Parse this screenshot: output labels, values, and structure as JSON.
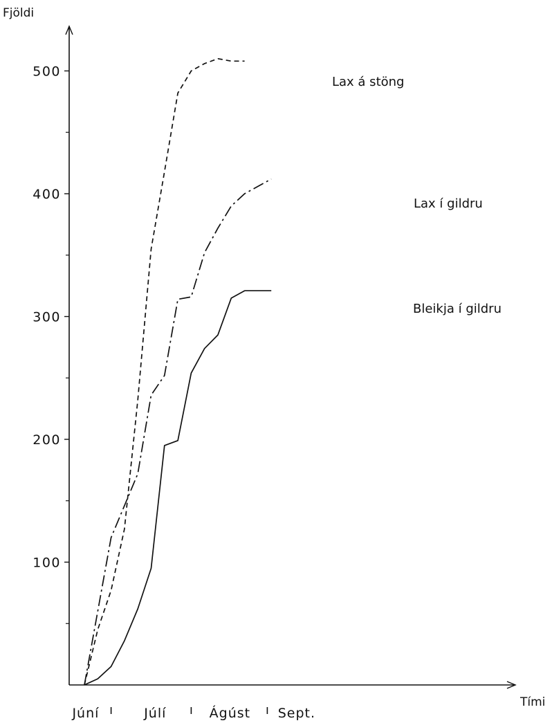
{
  "chart_data": {
    "type": "line",
    "ylabel": "Fjöldi",
    "xlabel": "Tími",
    "ylim": [
      0,
      520
    ],
    "yticks_major": [
      100,
      200,
      300,
      400,
      500
    ],
    "yticks_minor": [
      50,
      150,
      250,
      350,
      450
    ],
    "xlim": [
      0,
      17.4
    ],
    "month_labels": [
      {
        "label": "Júní",
        "x": 0.1
      },
      {
        "label": "Júlí",
        "x": 5.3
      },
      {
        "label": "Ágúst",
        "x": 10.9
      },
      {
        "label": "Sept.",
        "x": 15.9
      }
    ],
    "month_boundaries": [
      2.0,
      8.0,
      13.7
    ],
    "grid": false,
    "series": [
      {
        "name": "Lax á stöng",
        "style": "dashed",
        "color": "#111111",
        "x": [
          0,
          1,
          2,
          3,
          4,
          5,
          6,
          7,
          8,
          9,
          10,
          11,
          12
        ],
        "y": [
          0,
          45,
          77,
          127,
          232,
          355,
          418,
          482,
          500,
          506,
          510,
          508,
          508
        ]
      },
      {
        "name": "Lax í gildru",
        "style": "dashdot",
        "color": "#111111",
        "x": [
          0,
          2,
          4,
          5,
          6,
          7,
          8,
          9,
          10,
          11,
          12,
          13,
          14
        ],
        "y": [
          0,
          120,
          172,
          236,
          252,
          314,
          316,
          352,
          372,
          390,
          400,
          406,
          412
        ]
      },
      {
        "name": "Bleikja í gildru",
        "style": "solid",
        "color": "#111111",
        "x": [
          0,
          1,
          2,
          3,
          4,
          5,
          6,
          7,
          8,
          9,
          10,
          11,
          12,
          13,
          14
        ],
        "y": [
          0,
          5,
          15,
          36,
          62,
          95,
          195,
          199,
          254,
          274,
          285,
          315,
          321,
          321,
          321
        ]
      }
    ]
  }
}
